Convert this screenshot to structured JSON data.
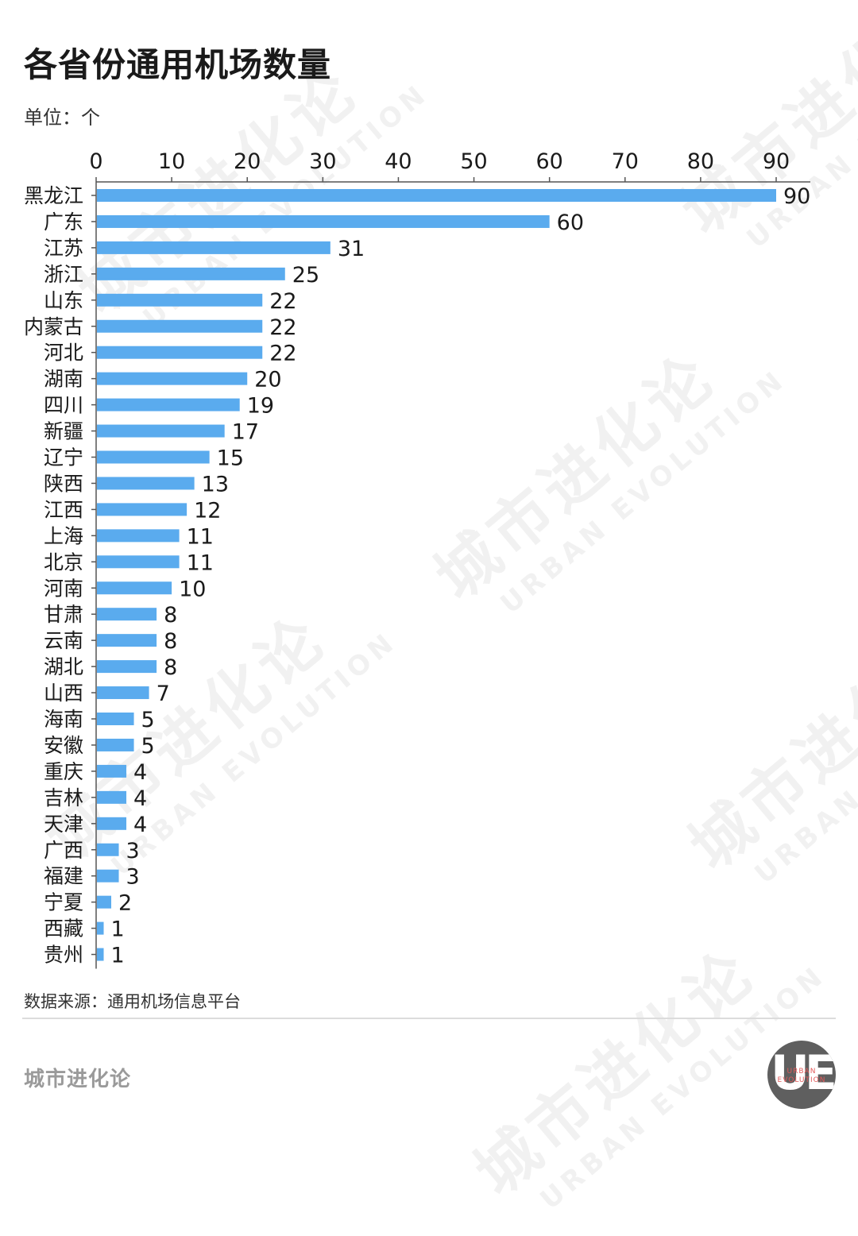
{
  "header": {
    "title": "各省份通用机场数量",
    "unit": "单位：个"
  },
  "footer": {
    "source": "数据来源：通用机场信息平台",
    "brand": "城市进化论"
  },
  "logo": {
    "mark": "UE",
    "line1": "URBAN",
    "line2": "EVOLUTION"
  },
  "watermark": {
    "cn": "城市进化论",
    "en": "URBAN EVOLUTION"
  },
  "colors": {
    "bar": "#5aabee",
    "axis": "#555555",
    "text": "#1a1a1a"
  },
  "chart_data": {
    "type": "bar",
    "orientation": "horizontal",
    "x_axis_position": "top",
    "xlim": [
      0,
      90
    ],
    "xticks": [
      0,
      10,
      20,
      30,
      40,
      50,
      60,
      70,
      80,
      90
    ],
    "grid": false,
    "categories": [
      "黑龙江",
      "广东",
      "江苏",
      "浙江",
      "山东",
      "内蒙古",
      "河北",
      "湖南",
      "四川",
      "新疆",
      "辽宁",
      "陕西",
      "江西",
      "上海",
      "北京",
      "河南",
      "甘肃",
      "云南",
      "湖北",
      "山西",
      "海南",
      "安徽",
      "重庆",
      "吉林",
      "天津",
      "广西",
      "福建",
      "宁夏",
      "西藏",
      "贵州"
    ],
    "values": [
      90,
      60,
      31,
      25,
      22,
      22,
      22,
      20,
      19,
      17,
      15,
      13,
      12,
      11,
      11,
      10,
      8,
      8,
      8,
      7,
      5,
      5,
      4,
      4,
      4,
      3,
      3,
      2,
      1,
      1
    ]
  }
}
